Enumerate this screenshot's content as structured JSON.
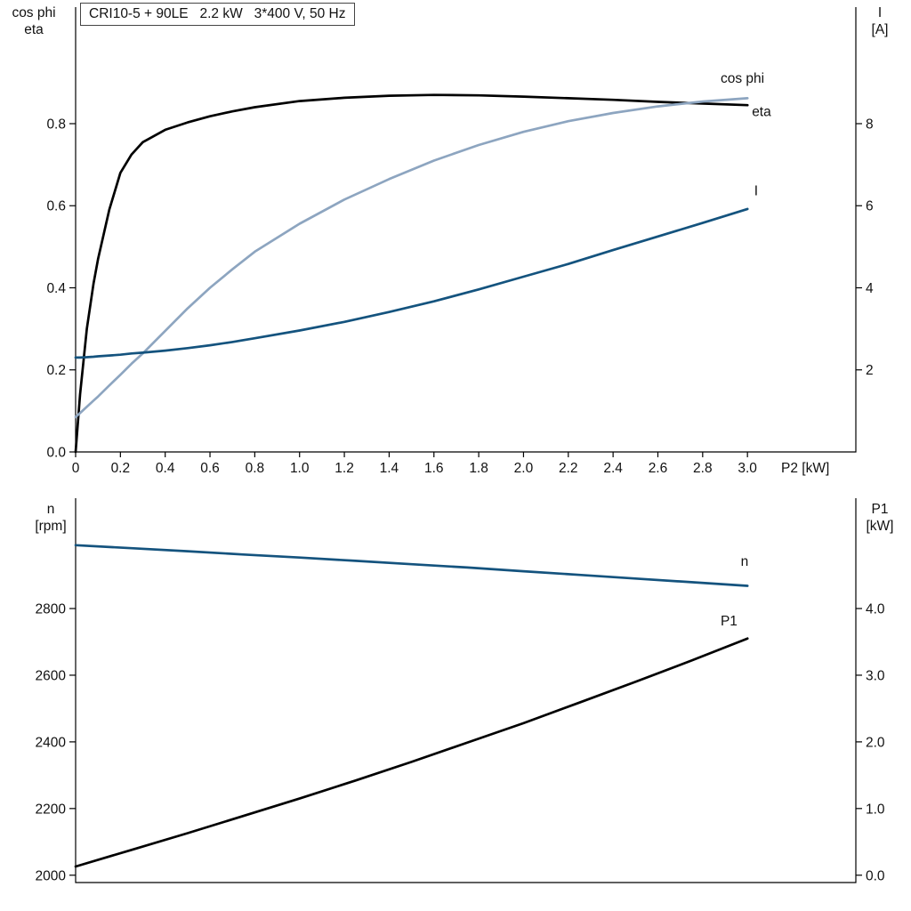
{
  "chart_data": [
    {
      "type": "line",
      "title": "CRI10-5 + 90LE   2.2 kW   3*400 V, 50 Hz",
      "xlabel": "P2 [kW]",
      "xlim": [
        0,
        3.484
      ],
      "grid": false,
      "legend_position": "inline-labels",
      "x_ticks": [
        0,
        0.2,
        0.4,
        0.6,
        0.8,
        1.0,
        1.2,
        1.4,
        1.6,
        1.8,
        2.0,
        2.2,
        2.4,
        2.6,
        2.8,
        3.0
      ],
      "x_tick_labels": [
        "0",
        "0.2",
        "0.4",
        "0.6",
        "0.8",
        "1.0",
        "1.2",
        "1.4",
        "1.6",
        "1.8",
        "2.0",
        "2.2",
        "2.4",
        "2.6",
        "2.8",
        "3.0"
      ],
      "left_axis": {
        "label": "cos phi\neta",
        "lim": [
          0,
          1.084
        ],
        "ticks": [
          0,
          0.2,
          0.4,
          0.6,
          0.8
        ],
        "tick_labels": [
          "0.0",
          "0.2",
          "0.4",
          "0.6",
          "0.8"
        ]
      },
      "right_axis": {
        "label": "I\n[A]",
        "lim": [
          0,
          10.84
        ],
        "ticks": [
          2,
          4,
          6,
          8
        ],
        "tick_labels": [
          "2",
          "4",
          "6",
          "8"
        ]
      },
      "series": [
        {
          "name": "eta",
          "axis": "left",
          "color": "#000000",
          "label_at": [
            3.02,
            0.818
          ],
          "x": [
            0,
            0.02,
            0.05,
            0.08,
            0.1,
            0.15,
            0.2,
            0.25,
            0.3,
            0.4,
            0.5,
            0.6,
            0.7,
            0.8,
            1.0,
            1.2,
            1.4,
            1.6,
            1.8,
            2.0,
            2.2,
            2.4,
            2.6,
            2.8,
            3.0
          ],
          "y": [
            0,
            0.14,
            0.3,
            0.41,
            0.47,
            0.59,
            0.68,
            0.725,
            0.755,
            0.785,
            0.803,
            0.818,
            0.83,
            0.84,
            0.855,
            0.863,
            0.868,
            0.87,
            0.869,
            0.866,
            0.862,
            0.858,
            0.853,
            0.849,
            0.845
          ]
        },
        {
          "name": "cos phi",
          "axis": "left",
          "color": "#8da5c0",
          "label_at": [
            2.88,
            0.9
          ],
          "x": [
            0,
            0.02,
            0.05,
            0.08,
            0.1,
            0.15,
            0.2,
            0.25,
            0.3,
            0.4,
            0.5,
            0.6,
            0.7,
            0.8,
            1.0,
            1.2,
            1.4,
            1.6,
            1.8,
            2.0,
            2.2,
            2.4,
            2.6,
            2.8,
            3.0
          ],
          "y": [
            0.085,
            0.095,
            0.11,
            0.125,
            0.135,
            0.162,
            0.188,
            0.215,
            0.24,
            0.295,
            0.35,
            0.4,
            0.445,
            0.488,
            0.556,
            0.615,
            0.665,
            0.71,
            0.748,
            0.78,
            0.806,
            0.826,
            0.842,
            0.854,
            0.862
          ]
        },
        {
          "name": "I",
          "axis": "right",
          "color": "#14537e",
          "label_at": [
            3.03,
            6.25
          ],
          "x": [
            0,
            0.02,
            0.05,
            0.08,
            0.1,
            0.15,
            0.2,
            0.25,
            0.3,
            0.4,
            0.5,
            0.6,
            0.7,
            0.8,
            1.0,
            1.2,
            1.4,
            1.6,
            1.8,
            2.0,
            2.2,
            2.4,
            2.6,
            2.8,
            3.0
          ],
          "y": [
            2.3,
            2.3,
            2.31,
            2.32,
            2.33,
            2.35,
            2.37,
            2.4,
            2.42,
            2.47,
            2.53,
            2.6,
            2.68,
            2.77,
            2.96,
            3.17,
            3.41,
            3.67,
            3.96,
            4.27,
            4.58,
            4.92,
            5.25,
            5.58,
            5.92
          ]
        }
      ]
    },
    {
      "type": "line",
      "xlim": [
        0,
        3.484
      ],
      "grid": false,
      "x_ticks": [],
      "x_tick_labels": [],
      "left_axis": {
        "label": "n\n[rpm]",
        "lim": [
          1978,
          3131
        ],
        "ticks": [
          2000,
          2200,
          2400,
          2600,
          2800
        ],
        "tick_labels": [
          "2000",
          "2200",
          "2400",
          "2600",
          "2800"
        ]
      },
      "right_axis": {
        "label": "P1\n[kW]",
        "lim": [
          -0.11,
          5.655
        ],
        "ticks": [
          0,
          1,
          2,
          3,
          4
        ],
        "tick_labels": [
          "0.0",
          "1.0",
          "2.0",
          "3.0",
          "4.0"
        ]
      },
      "series": [
        {
          "name": "n",
          "axis": "left",
          "color": "#14537e",
          "label_at": [
            2.97,
            2928
          ],
          "x": [
            0,
            0.25,
            0.5,
            0.75,
            1.0,
            1.25,
            1.5,
            1.75,
            2.0,
            2.25,
            2.5,
            2.75,
            3.0
          ],
          "y": [
            2990,
            2981,
            2972,
            2962,
            2953,
            2943,
            2933,
            2923,
            2912,
            2901,
            2890,
            2879,
            2868
          ]
        },
        {
          "name": "P1",
          "axis": "right",
          "color": "#000000",
          "label_at": [
            2.88,
            3.75
          ],
          "x": [
            0,
            0.25,
            0.5,
            0.75,
            1.0,
            1.25,
            1.5,
            1.75,
            2.0,
            2.25,
            2.5,
            2.75,
            3.0
          ],
          "y": [
            0.13,
            0.38,
            0.63,
            0.89,
            1.15,
            1.42,
            1.7,
            1.99,
            2.28,
            2.59,
            2.9,
            3.22,
            3.55
          ]
        }
      ]
    }
  ]
}
